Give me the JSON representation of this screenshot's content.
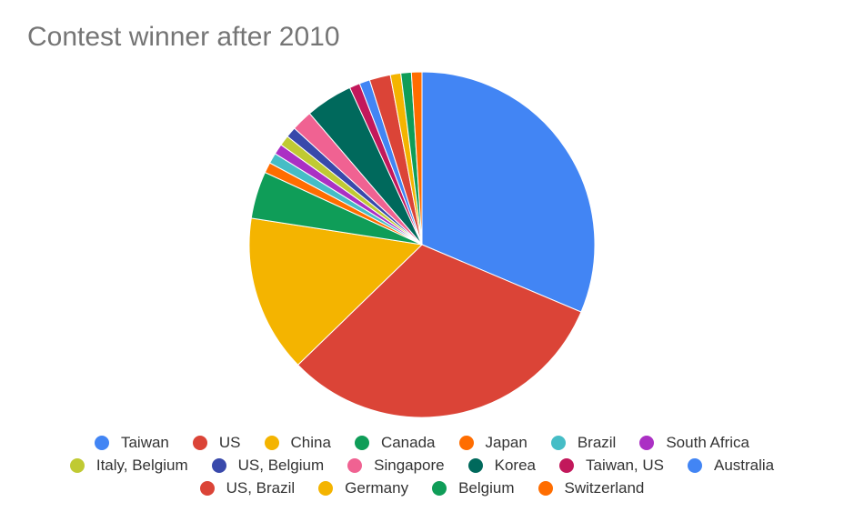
{
  "chart_data": {
    "type": "pie",
    "title": "Contest winner after 2010",
    "legend_position": "bottom",
    "slices": [
      {
        "label": "Taiwan",
        "value": 32,
        "color": "#4285F4"
      },
      {
        "label": "US",
        "value": 32,
        "color": "#DB4437"
      },
      {
        "label": "China",
        "value": 15,
        "color": "#F4B400"
      },
      {
        "label": "Canada",
        "value": 4.5,
        "color": "#0F9D58"
      },
      {
        "label": "Japan",
        "value": 1,
        "color": "#FF6D00"
      },
      {
        "label": "Brazil",
        "value": 1,
        "color": "#46BDC6"
      },
      {
        "label": "South Africa",
        "value": 1,
        "color": "#AB30C4"
      },
      {
        "label": "Italy, Belgium",
        "value": 1,
        "color": "#C0CA33"
      },
      {
        "label": "US, Belgium",
        "value": 1,
        "color": "#3949AB"
      },
      {
        "label": "Singapore",
        "value": 2,
        "color": "#F06292"
      },
      {
        "label": "Korea",
        "value": 4.5,
        "color": "#00695C"
      },
      {
        "label": "Taiwan, US",
        "value": 1,
        "color": "#C2185B"
      },
      {
        "label": "Australia",
        "value": 1,
        "color": "#4285F4"
      },
      {
        "label": "US, Brazil",
        "value": 2,
        "color": "#DB4437"
      },
      {
        "label": "Germany",
        "value": 1,
        "color": "#F4B400"
      },
      {
        "label": "Belgium",
        "value": 1,
        "color": "#0F9D58"
      },
      {
        "label": "Switzerland",
        "value": 1,
        "color": "#FF6D00"
      }
    ]
  }
}
